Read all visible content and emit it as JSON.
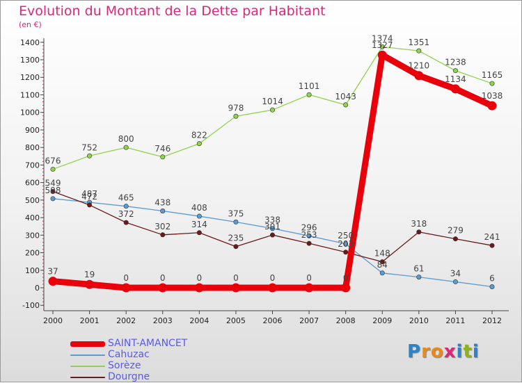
{
  "header": {
    "title": "Evolution du Montant de la Dette par Habitant",
    "unit": "(en €)"
  },
  "colors": {
    "title": "#d9287a",
    "legend_text": "#5a5ae6",
    "axis": "#333333"
  },
  "chart_data": {
    "type": "line",
    "title": "Evolution du Montant de la Dette par Habitant",
    "ylabel": "(en €)",
    "xlabel": "",
    "x": [
      2000,
      2001,
      2002,
      2003,
      2004,
      2005,
      2006,
      2007,
      2008,
      2009,
      2010,
      2011,
      2012
    ],
    "ylim": [
      -100,
      1400
    ],
    "yticks": [
      -100,
      0,
      100,
      200,
      300,
      400,
      500,
      600,
      700,
      800,
      900,
      1000,
      1100,
      1200,
      1300,
      1400
    ],
    "grid": false,
    "legend_position": "bottom-left",
    "series": [
      {
        "name": "SAINT-AMANCET",
        "color": "#e8000b",
        "emphasis": true,
        "values": [
          37,
          19,
          0,
          0,
          0,
          0,
          0,
          0,
          0,
          1327,
          1210,
          1134,
          1038
        ]
      },
      {
        "name": "Cahuzac",
        "color": "#5b9bd5",
        "emphasis": false,
        "values": [
          508,
          487,
          465,
          438,
          408,
          375,
          338,
          296,
          250,
          84,
          61,
          34,
          6
        ]
      },
      {
        "name": "Sorèze",
        "color": "#8fd34b",
        "emphasis": false,
        "values": [
          676,
          752,
          800,
          746,
          822,
          978,
          1014,
          1101,
          1043,
          1374,
          1351,
          1238,
          1165
        ]
      },
      {
        "name": "Dourgne",
        "color": "#6b1a1a",
        "emphasis": false,
        "values": [
          549,
          472,
          372,
          302,
          314,
          235,
          301,
          253,
          203,
          148,
          318,
          279,
          241
        ]
      }
    ]
  },
  "logo": {
    "letters": [
      "P",
      "r",
      "o",
      "x",
      "i",
      "t",
      "i"
    ],
    "colors": [
      "#2c84c6",
      "#e78a1c",
      "#e78a1c",
      "#d9287a",
      "#2c84c6",
      "#8fb320",
      "#2c84c6"
    ]
  }
}
